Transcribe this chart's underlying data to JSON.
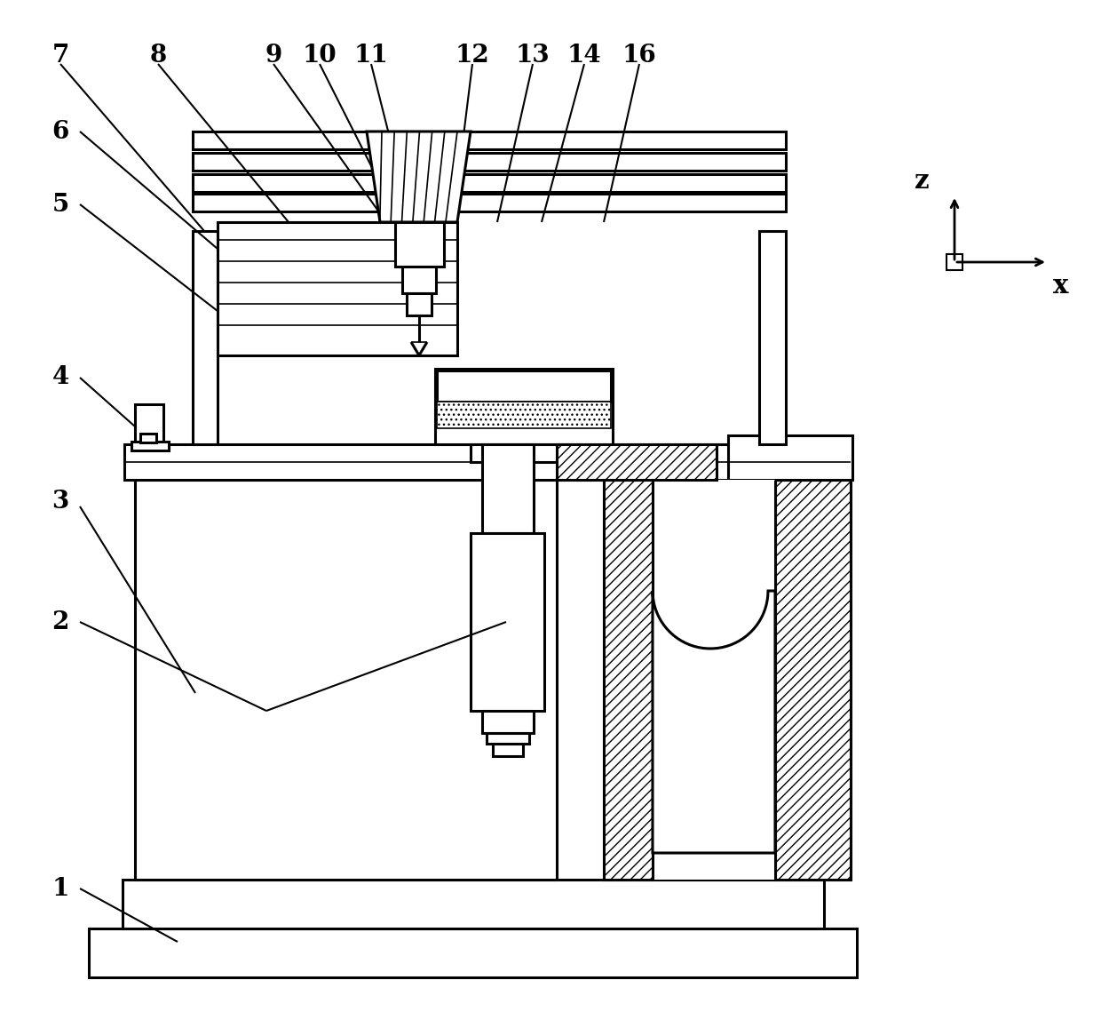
{
  "bg": "#ffffff",
  "lc": "#000000",
  "lw": 2.2,
  "lwt": 1.2,
  "fw": 12.4,
  "fh": 11.39,
  "dpi": 100
}
